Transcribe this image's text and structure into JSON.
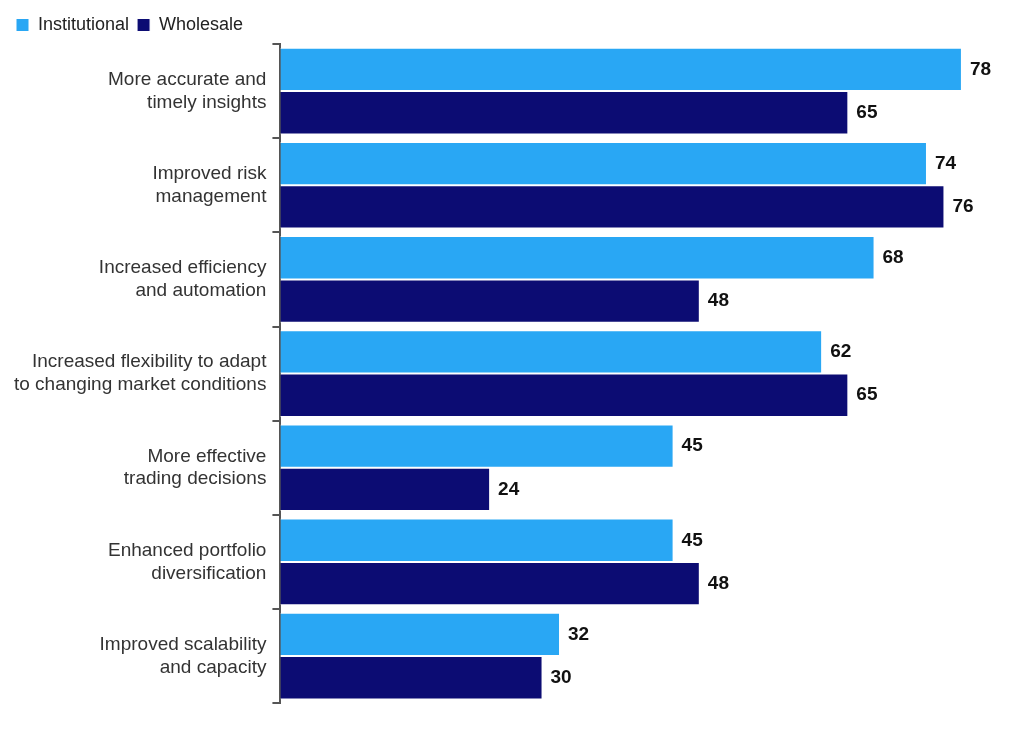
{
  "chart_data": {
    "type": "bar",
    "orientation": "horizontal",
    "categories": [
      "More accurate and timely insights",
      "Improved risk management",
      "Increased efficiency and automation",
      "Increased flexibility to adapt to changing market conditions",
      "More effective trading decisions",
      "Enhanced portfolio diversification",
      "Improved scalability and capacity"
    ],
    "series": [
      {
        "name": "Institutional",
        "color": "#29a7f4",
        "values": [
          78,
          74,
          68,
          62,
          45,
          45,
          32
        ]
      },
      {
        "name": "Wholesale",
        "color": "#0c0c73",
        "values": [
          65,
          76,
          48,
          65,
          24,
          48,
          30
        ]
      }
    ],
    "data_labels": true,
    "legend": "top left",
    "tick_labels": "y"
  }
}
